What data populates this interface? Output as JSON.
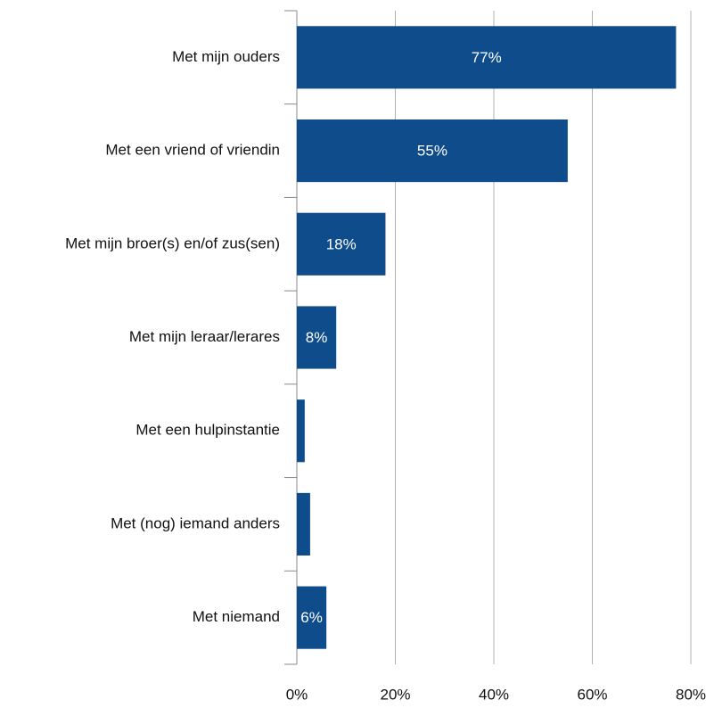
{
  "chart_data": {
    "type": "bar",
    "orientation": "horizontal",
    "categories": [
      "Met mijn ouders",
      "Met een vriend of vriendin",
      "Met mijn broer(s) en/of zus(sen)",
      "Met mijn leraar/lerares",
      "Met een hulpinstantie",
      "Met (nog) iemand anders",
      "Met niemand"
    ],
    "values": [
      77,
      55,
      18,
      8,
      1.6,
      2.7,
      6
    ],
    "value_labels": [
      "77%",
      "55%",
      "18%",
      "8%",
      null,
      null,
      "6%"
    ],
    "color": "#0f4c8c",
    "xlim": [
      0,
      80
    ],
    "xticks": [
      {
        "value": 0,
        "label": "0%"
      },
      {
        "value": 20,
        "label": "20%"
      },
      {
        "value": 40,
        "label": "40%"
      },
      {
        "value": 60,
        "label": "60%"
      },
      {
        "value": 80,
        "label": "80%"
      }
    ],
    "grid": true
  }
}
